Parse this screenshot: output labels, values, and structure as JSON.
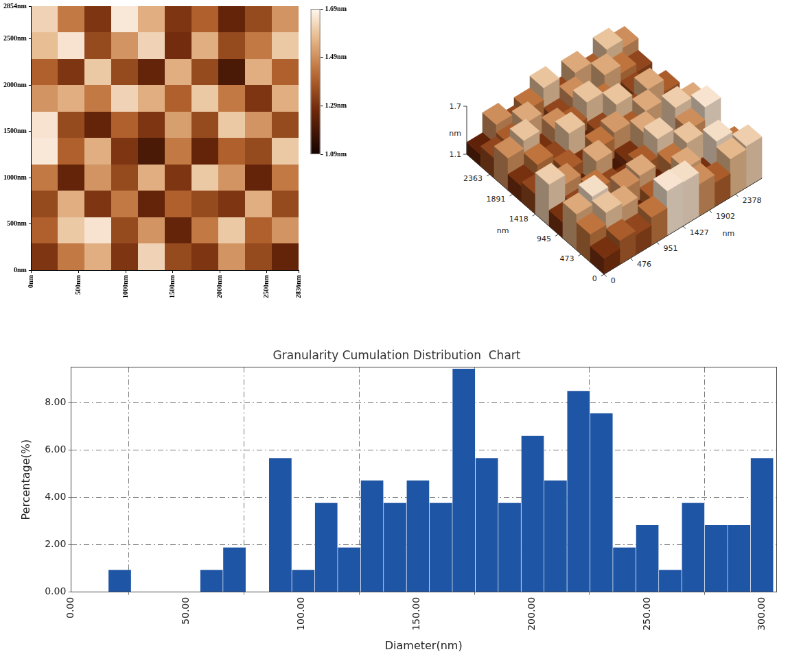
{
  "chart_data": [
    {
      "type": "heatmap",
      "xlim": [
        0,
        2836
      ],
      "xticks": [
        {
          "value": 0,
          "label": "0nm"
        },
        {
          "value": 500,
          "label": "500nm"
        },
        {
          "value": 1000,
          "label": "1000nm"
        },
        {
          "value": 1500,
          "label": "1500nm"
        },
        {
          "value": 2000,
          "label": "2000nm"
        },
        {
          "value": 2500,
          "label": "2500nm"
        },
        {
          "value": 2836,
          "label": "2836nm"
        }
      ],
      "ylim": [
        0,
        2854
      ],
      "yticks": [
        {
          "value": 0,
          "label": "0nm"
        },
        {
          "value": 500,
          "label": "500nm"
        },
        {
          "value": 1000,
          "label": "1000nm"
        },
        {
          "value": 1500,
          "label": "1500nm"
        },
        {
          "value": 2000,
          "label": "2000nm"
        },
        {
          "value": 2500,
          "label": "2500nm"
        },
        {
          "value": 2854,
          "label": "2854nm"
        }
      ],
      "cells": [
        [
          1.62,
          1.45,
          1.3,
          1.66,
          1.55,
          1.3,
          1.4,
          1.25,
          1.35,
          1.5
        ],
        [
          1.58,
          1.65,
          1.35,
          1.5,
          1.62,
          1.28,
          1.55,
          1.35,
          1.45,
          1.6
        ],
        [
          1.4,
          1.3,
          1.6,
          1.35,
          1.25,
          1.55,
          1.35,
          1.2,
          1.55,
          1.4
        ],
        [
          1.5,
          1.55,
          1.45,
          1.62,
          1.55,
          1.4,
          1.6,
          1.45,
          1.3,
          1.55
        ],
        [
          1.65,
          1.35,
          1.25,
          1.4,
          1.3,
          1.52,
          1.35,
          1.6,
          1.5,
          1.35
        ],
        [
          1.66,
          1.4,
          1.55,
          1.3,
          1.2,
          1.45,
          1.25,
          1.4,
          1.35,
          1.6
        ],
        [
          1.45,
          1.25,
          1.5,
          1.35,
          1.55,
          1.3,
          1.6,
          1.5,
          1.25,
          1.45
        ],
        [
          1.35,
          1.55,
          1.3,
          1.45,
          1.25,
          1.4,
          1.35,
          1.3,
          1.55,
          1.35
        ],
        [
          1.4,
          1.6,
          1.65,
          1.35,
          1.5,
          1.25,
          1.45,
          1.6,
          1.4,
          1.5
        ],
        [
          1.3,
          1.45,
          1.55,
          1.3,
          1.62,
          1.35,
          1.3,
          1.5,
          1.35,
          1.25
        ]
      ],
      "colorbar": {
        "range": [
          1.09,
          1.69
        ],
        "ticks": [
          {
            "value": 1.09,
            "label": "1.09nm"
          },
          {
            "value": 1.29,
            "label": "1.29nm"
          },
          {
            "value": 1.49,
            "label": "1.49nm"
          },
          {
            "value": 1.69,
            "label": "1.69nm"
          }
        ]
      }
    },
    {
      "type": "surface",
      "xlim": [
        0,
        2854
      ],
      "xticks": [
        0,
        476,
        951,
        1427,
        1902,
        2378
      ],
      "x_label": "nm",
      "ylim": [
        0,
        2836
      ],
      "yticks": [
        0,
        473,
        945,
        1418,
        1891,
        2363
      ],
      "y_label": "nm",
      "zlim": [
        1.1,
        1.7
      ],
      "zticks": [
        1.1,
        1.7
      ],
      "z_label": "nm",
      "z": [
        [
          1.3,
          1.4,
          1.35,
          1.45,
          1.66,
          1.65,
          1.5,
          1.4,
          1.58,
          1.62
        ],
        [
          1.45,
          1.6,
          1.55,
          1.25,
          1.4,
          1.35,
          1.55,
          1.3,
          1.65,
          1.45
        ],
        [
          1.55,
          1.65,
          1.3,
          1.5,
          1.55,
          1.25,
          1.45,
          1.6,
          1.35,
          1.3
        ],
        [
          1.3,
          1.35,
          1.45,
          1.35,
          1.3,
          1.4,
          1.62,
          1.35,
          1.5,
          1.66
        ],
        [
          1.62,
          1.5,
          1.25,
          1.55,
          1.2,
          1.3,
          1.55,
          1.25,
          1.62,
          1.55
        ],
        [
          1.35,
          1.25,
          1.4,
          1.3,
          1.45,
          1.52,
          1.4,
          1.55,
          1.28,
          1.3
        ],
        [
          1.3,
          1.45,
          1.35,
          1.6,
          1.25,
          1.35,
          1.6,
          1.35,
          1.55,
          1.4
        ],
        [
          1.5,
          1.6,
          1.3,
          1.5,
          1.4,
          1.6,
          1.45,
          1.2,
          1.35,
          1.25
        ],
        [
          1.35,
          1.4,
          1.55,
          1.25,
          1.35,
          1.5,
          1.3,
          1.55,
          1.45,
          1.35
        ],
        [
          1.25,
          1.5,
          1.35,
          1.45,
          1.6,
          1.35,
          1.55,
          1.4,
          1.6,
          1.5
        ]
      ]
    },
    {
      "type": "histogram",
      "title": "Granularity Cumulation Distribution  Chart",
      "x_label": "Diameter(nm)",
      "y_label": "Percentage(%)",
      "bins": [
        16.3,
        26.25,
        36.2,
        46.15,
        56.1,
        66.05,
        76.0,
        85.95,
        95.9,
        105.85,
        115.8,
        125.75,
        135.7,
        145.65,
        155.6,
        165.55,
        175.5,
        185.45,
        195.4,
        205.35,
        215.3,
        225.25,
        235.2,
        245.15,
        255.1,
        265.05,
        275.0,
        284.95,
        294.9,
        304.85
      ],
      "values": [
        0.94,
        0,
        0,
        0,
        0.94,
        1.89,
        0,
        5.66,
        0.94,
        3.77,
        1.89,
        4.72,
        3.77,
        4.72,
        3.77,
        9.43,
        5.66,
        3.77,
        6.6,
        4.72,
        8.49,
        7.55,
        1.89,
        2.83,
        0.94,
        3.77,
        2.83,
        2.83,
        5.66
      ],
      "color": "#1f55a5",
      "xlim": [
        0,
        306
      ],
      "xticks": [
        {
          "value": 0,
          "label": "0.00"
        },
        {
          "value": 50,
          "label": "50.00"
        },
        {
          "value": 100,
          "label": "100.00"
        },
        {
          "value": 150,
          "label": "150.00"
        },
        {
          "value": 200,
          "label": "200.00"
        },
        {
          "value": 250,
          "label": "250.00"
        },
        {
          "value": 300,
          "label": "300.00"
        }
      ],
      "ylim": [
        0,
        9.5
      ],
      "yticks": [
        {
          "value": 0,
          "label": "0.00"
        },
        {
          "value": 2,
          "label": "2.00"
        },
        {
          "value": 4,
          "label": "4.00"
        },
        {
          "value": 6,
          "label": "6.00"
        },
        {
          "value": 8,
          "label": "8.00"
        }
      ],
      "grid": true
    }
  ]
}
